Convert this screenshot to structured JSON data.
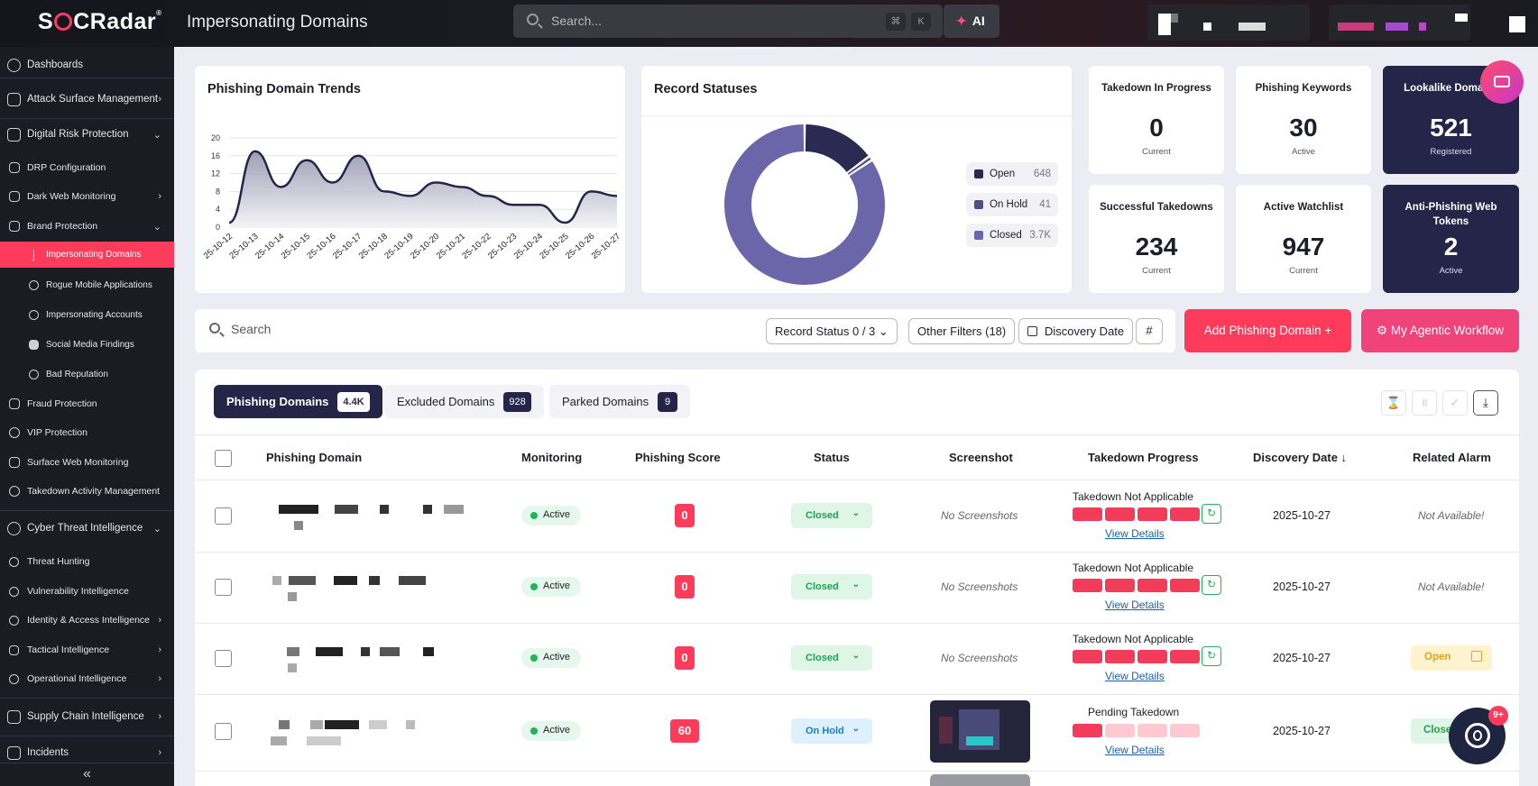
{
  "app": {
    "logo": "SOCRadar",
    "page_title": "Impersonating Domains"
  },
  "topbar": {
    "search_placeholder": "Search...",
    "kbd_cmd": "⌘",
    "kbd_k": "K",
    "ai_label": "AI"
  },
  "sidebar": {
    "items": [
      {
        "label": "Dashboards"
      },
      {
        "label": "Attack Surface Management"
      },
      {
        "label": "Digital Risk Protection"
      },
      {
        "label": "DRP Configuration"
      },
      {
        "label": "Dark Web Monitoring"
      },
      {
        "label": "Brand Protection"
      },
      {
        "label": "Impersonating Domains"
      },
      {
        "label": "Rogue Mobile Applications"
      },
      {
        "label": "Impersonating Accounts"
      },
      {
        "label": "Social Media Findings"
      },
      {
        "label": "Bad Reputation"
      },
      {
        "label": "Fraud Protection"
      },
      {
        "label": "VIP Protection"
      },
      {
        "label": "Surface Web Monitoring"
      },
      {
        "label": "Takedown Activity Management"
      },
      {
        "label": "Cyber Threat Intelligence"
      },
      {
        "label": "Threat Hunting"
      },
      {
        "label": "Vulnerability Intelligence"
      },
      {
        "label": "Identity & Access Intelligence"
      },
      {
        "label": "Tactical Intelligence"
      },
      {
        "label": "Operational Intelligence"
      },
      {
        "label": "Supply Chain Intelligence"
      },
      {
        "label": "Incidents"
      }
    ],
    "collapse_icon": "«"
  },
  "trends": {
    "title": "Phishing Domain Trends"
  },
  "chart_data": {
    "type": "area",
    "title": "Phishing Domain Trends",
    "x": [
      "25-10-12",
      "25-10-13",
      "25-10-14",
      "25-10-15",
      "25-10-16",
      "25-10-17",
      "25-10-18",
      "25-10-19",
      "25-10-20",
      "25-10-21",
      "25-10-22",
      "25-10-23",
      "25-10-24",
      "25-10-25",
      "25-10-26",
      "25-10-27"
    ],
    "values": [
      1,
      17,
      9,
      15,
      10,
      16,
      8,
      7,
      10,
      9,
      7,
      5,
      5,
      1,
      8,
      7
    ],
    "yticks": [
      0,
      4,
      8,
      12,
      16,
      20
    ],
    "ylim": [
      0,
      20
    ],
    "grid": true
  },
  "statuses": {
    "title": "Record Statuses",
    "legend": [
      {
        "label": "Open",
        "value": "648",
        "color": "#2a2a52"
      },
      {
        "label": "On Hold",
        "value": "41",
        "color": "#4f4f86"
      },
      {
        "label": "Closed",
        "value": "3.7K",
        "color": "#6b66aa"
      }
    ],
    "donut": [
      648,
      41,
      3700
    ]
  },
  "stats": [
    {
      "label": "Takedown In Progress",
      "value": "0",
      "sub": "Current"
    },
    {
      "label": "Phishing Keywords",
      "value": "30",
      "sub": "Active"
    },
    {
      "label": "Lookalike Domains",
      "value": "521",
      "sub": "Registered"
    },
    {
      "label": "Successful Takedowns",
      "value": "234",
      "sub": "Current"
    },
    {
      "label": "Active Watchlist",
      "value": "947",
      "sub": "Current"
    },
    {
      "label": "Anti-Phishing Web Tokens",
      "value": "2",
      "sub": "Active"
    }
  ],
  "filters": {
    "search_placeholder": "Search",
    "record_status": "Record Status  0 / 3",
    "other_filters": "Other Filters  (18)",
    "discovery_date": "Discovery Date",
    "hash": "#",
    "add_button": "Add Phishing Domain  +",
    "agentic_button": "My Agentic Workflow"
  },
  "tabs": [
    {
      "label": "Phishing Domains",
      "count": "4.4K"
    },
    {
      "label": "Excluded Domains",
      "count": "928"
    },
    {
      "label": "Parked Domains",
      "count": "9"
    }
  ],
  "table": {
    "headers": [
      "Phishing Domain",
      "Monitoring",
      "Phishing Score",
      "Status",
      "Screenshot",
      "Takedown Progress",
      "Discovery Date ↓",
      "Related Alarm"
    ],
    "rows": [
      {
        "monitoring": "Active",
        "score": "0",
        "status": "Closed",
        "screenshot": "No Screenshots",
        "takedown": "Takedown Not Applicable",
        "details": "View Details",
        "date": "2025-10-27",
        "alarm": "Not Available!"
      },
      {
        "monitoring": "Active",
        "score": "0",
        "status": "Closed",
        "screenshot": "No Screenshots",
        "takedown": "Takedown Not Applicable",
        "details": "View Details",
        "date": "2025-10-27",
        "alarm": "Not Available!"
      },
      {
        "monitoring": "Active",
        "score": "0",
        "status": "Closed",
        "screenshot": "No Screenshots",
        "takedown": "Takedown Not Applicable",
        "details": "View Details",
        "date": "2025-10-27",
        "alarm": "Open"
      },
      {
        "monitoring": "Active",
        "score": "60",
        "status": "On Hold",
        "screenshot": "",
        "takedown": "Pending Takedown",
        "details": "View Details",
        "date": "2025-10-27",
        "alarm": "Closed"
      }
    ]
  },
  "chat": {
    "badge": "9+"
  }
}
